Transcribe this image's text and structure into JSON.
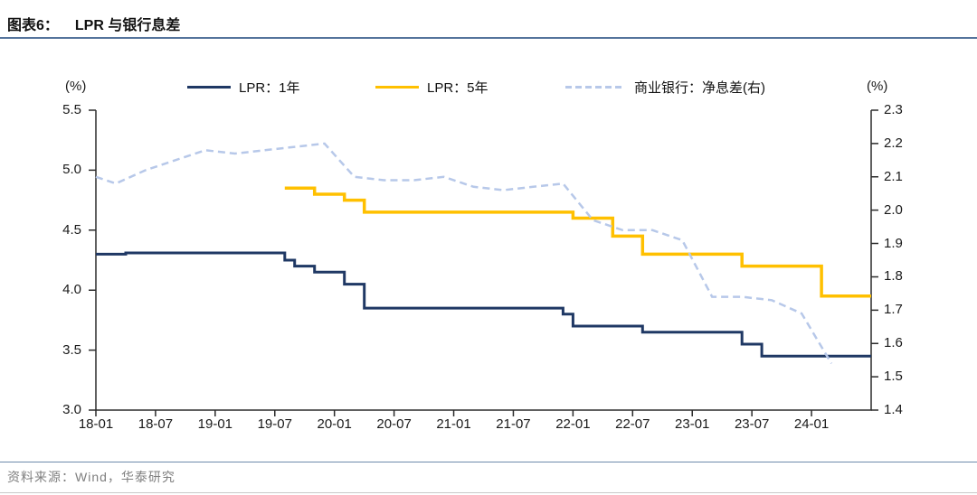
{
  "page": {
    "title_prefix": "图表6：",
    "title": "LPR 与银行息差",
    "source": "资料来源：Wind，华泰研究"
  },
  "colors": {
    "lpr1y": "#1f3864",
    "lpr5y": "#ffc000",
    "nim": "#b7c8e9",
    "axis": "#2b2b2b",
    "rule": "#55749c"
  },
  "chart_data": {
    "type": "line",
    "title": "LPR 与银行息差",
    "x_start_month": "2018-01",
    "x_end_month": "2024-07",
    "x_ticks": [
      "18-01",
      "18-07",
      "19-01",
      "19-07",
      "20-01",
      "20-07",
      "21-01",
      "21-07",
      "22-01",
      "22-07",
      "23-01",
      "23-07",
      "24-01"
    ],
    "left_axis": {
      "label": "(%)",
      "min": 3.0,
      "max": 5.5,
      "step": 0.5
    },
    "right_axis": {
      "label": "(%)",
      "min": 1.4,
      "max": 2.3,
      "step": 0.1
    },
    "grid": false,
    "legend_position": "top",
    "series": [
      {
        "name": "LPR：1年",
        "axis": "left",
        "style": "solid",
        "step": true,
        "extend_to_end": true,
        "points": [
          [
            "2018-01",
            4.3
          ],
          [
            "2018-04",
            4.31
          ],
          [
            "2019-08",
            4.25
          ],
          [
            "2019-09",
            4.2
          ],
          [
            "2019-11",
            4.15
          ],
          [
            "2020-02",
            4.05
          ],
          [
            "2020-04",
            3.85
          ],
          [
            "2021-12",
            3.8
          ],
          [
            "2022-01",
            3.7
          ],
          [
            "2022-08",
            3.65
          ],
          [
            "2023-06",
            3.55
          ],
          [
            "2023-08",
            3.45
          ]
        ]
      },
      {
        "name": "LPR：5年",
        "axis": "left",
        "style": "solid",
        "step": true,
        "extend_to_end": true,
        "points": [
          [
            "2019-08",
            4.85
          ],
          [
            "2019-11",
            4.8
          ],
          [
            "2020-02",
            4.75
          ],
          [
            "2020-04",
            4.65
          ],
          [
            "2022-01",
            4.6
          ],
          [
            "2022-05",
            4.45
          ],
          [
            "2022-08",
            4.3
          ],
          [
            "2023-06",
            4.2
          ],
          [
            "2024-02",
            3.95
          ]
        ]
      },
      {
        "name": "商业银行：净息差(右)",
        "axis": "right",
        "style": "dashed",
        "step": false,
        "extend_to_end": false,
        "points": [
          [
            "2018-01",
            2.1
          ],
          [
            "2018-03",
            2.08
          ],
          [
            "2018-06",
            2.12
          ],
          [
            "2018-09",
            2.15
          ],
          [
            "2018-12",
            2.18
          ],
          [
            "2019-03",
            2.17
          ],
          [
            "2019-06",
            2.18
          ],
          [
            "2019-09",
            2.19
          ],
          [
            "2019-12",
            2.2
          ],
          [
            "2020-03",
            2.1
          ],
          [
            "2020-06",
            2.09
          ],
          [
            "2020-09",
            2.09
          ],
          [
            "2020-12",
            2.1
          ],
          [
            "2021-03",
            2.07
          ],
          [
            "2021-06",
            2.06
          ],
          [
            "2021-09",
            2.07
          ],
          [
            "2021-12",
            2.08
          ],
          [
            "2022-03",
            1.97
          ],
          [
            "2022-06",
            1.94
          ],
          [
            "2022-09",
            1.94
          ],
          [
            "2022-12",
            1.91
          ],
          [
            "2023-03",
            1.74
          ],
          [
            "2023-06",
            1.74
          ],
          [
            "2023-09",
            1.73
          ],
          [
            "2023-12",
            1.69
          ],
          [
            "2024-03",
            1.54
          ]
        ]
      }
    ]
  }
}
